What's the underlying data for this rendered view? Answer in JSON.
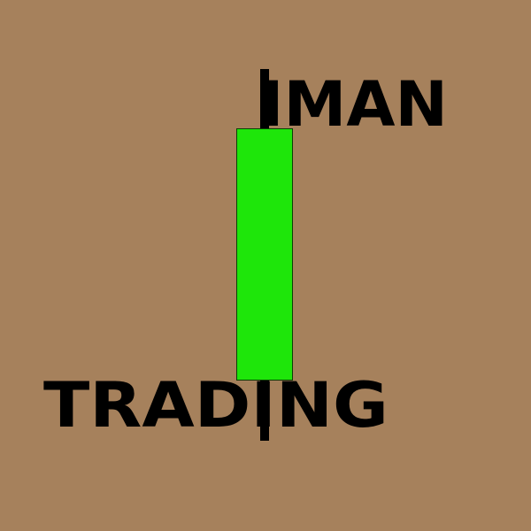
{
  "logo": {
    "word_top": "IMAN",
    "word_bottom": "TRADING",
    "colors": {
      "background": "#A6815C",
      "candle_body": "#1EE60A",
      "text": "#000000",
      "wick": "#000000"
    },
    "icon": "candlestick-icon"
  }
}
